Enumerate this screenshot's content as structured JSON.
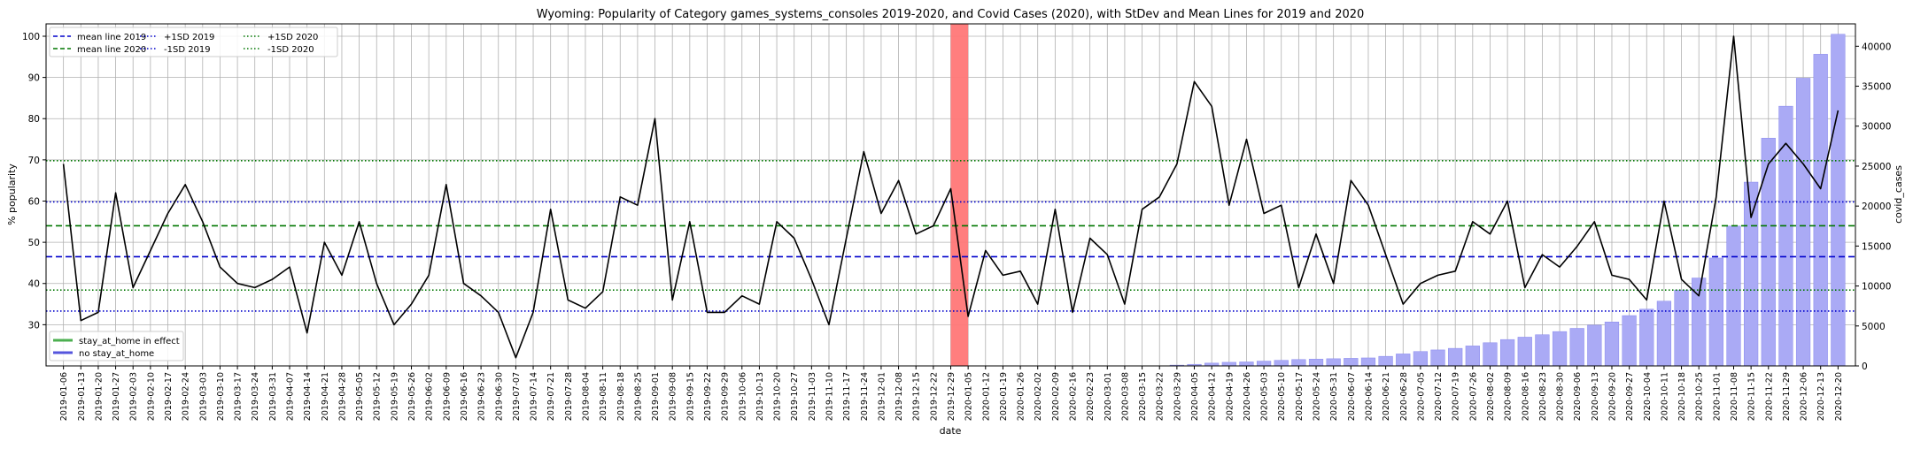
{
  "chart_data": {
    "type": "line+bar",
    "title": "Wyoming: Popularity of Category games_systems_consoles 2019-2020, and Covid Cases (2020), with StDev and Mean Lines for 2019 and 2020",
    "xlabel": "date",
    "ylabel_left": "% popularity",
    "ylabel_right": "covid_cases",
    "ylim_left": [
      20,
      103
    ],
    "ylim_right": [
      0,
      42800
    ],
    "yticks_left": [
      30,
      40,
      50,
      60,
      70,
      80,
      90,
      100
    ],
    "yticks_right": [
      0,
      5000,
      10000,
      15000,
      20000,
      25000,
      30000,
      35000,
      40000
    ],
    "grid": true,
    "dates": [
      "2019-01-06",
      "2019-01-13",
      "2019-01-20",
      "2019-01-27",
      "2019-02-03",
      "2019-02-10",
      "2019-02-17",
      "2019-02-24",
      "2019-03-03",
      "2019-03-10",
      "2019-03-17",
      "2019-03-24",
      "2019-03-31",
      "2019-04-07",
      "2019-04-14",
      "2019-04-21",
      "2019-04-28",
      "2019-05-05",
      "2019-05-12",
      "2019-05-19",
      "2019-05-26",
      "2019-06-02",
      "2019-06-09",
      "2019-06-16",
      "2019-06-23",
      "2019-06-30",
      "2019-07-07",
      "2019-07-14",
      "2019-07-21",
      "2019-07-28",
      "2019-08-04",
      "2019-08-11",
      "2019-08-18",
      "2019-08-25",
      "2019-09-01",
      "2019-09-08",
      "2019-09-15",
      "2019-09-22",
      "2019-09-29",
      "2019-10-06",
      "2019-10-13",
      "2019-10-20",
      "2019-10-27",
      "2019-11-03",
      "2019-11-10",
      "2019-11-17",
      "2019-11-24",
      "2019-12-01",
      "2019-12-08",
      "2019-12-15",
      "2019-12-22",
      "2019-12-29",
      "2020-01-05",
      "2020-01-12",
      "2020-01-19",
      "2020-01-26",
      "2020-02-02",
      "2020-02-09",
      "2020-02-16",
      "2020-02-23",
      "2020-03-01",
      "2020-03-08",
      "2020-03-15",
      "2020-03-22",
      "2020-03-29",
      "2020-04-05",
      "2020-04-12",
      "2020-04-19",
      "2020-04-26",
      "2020-05-03",
      "2020-05-10",
      "2020-05-17",
      "2020-05-24",
      "2020-05-31",
      "2020-06-07",
      "2020-06-14",
      "2020-06-21",
      "2020-06-28",
      "2020-07-05",
      "2020-07-12",
      "2020-07-19",
      "2020-07-26",
      "2020-08-02",
      "2020-08-09",
      "2020-08-16",
      "2020-08-23",
      "2020-08-30",
      "2020-09-06",
      "2020-09-13",
      "2020-09-20",
      "2020-09-27",
      "2020-10-04",
      "2020-10-11",
      "2020-10-18",
      "2020-10-25",
      "2020-11-01",
      "2020-11-08",
      "2020-11-15",
      "2020-11-22",
      "2020-11-29",
      "2020-12-06",
      "2020-12-13",
      "2020-12-20"
    ],
    "popularity": [
      69,
      31,
      33,
      62,
      39,
      48,
      57,
      64,
      55,
      44,
      40,
      39,
      41,
      44,
      28,
      50,
      42,
      55,
      40,
      30,
      35,
      42,
      64,
      40,
      37,
      33,
      22,
      33,
      58,
      36,
      34,
      38,
      61,
      59,
      80,
      36,
      55,
      33,
      33,
      37,
      35,
      55,
      51,
      41,
      30,
      51,
      72,
      57,
      65,
      52,
      54,
      63,
      32,
      48,
      42,
      43,
      35,
      58,
      33,
      51,
      47,
      35,
      58,
      61,
      69,
      89,
      83,
      59,
      75,
      57,
      59,
      39,
      52,
      40,
      65,
      59,
      47,
      35,
      40,
      42,
      43,
      55,
      52,
      60,
      39,
      47,
      44,
      49,
      55,
      42,
      41,
      36,
      60,
      41,
      37,
      61,
      100,
      56,
      69,
      74,
      69,
      63,
      82
    ],
    "covid_dates": [
      "2020-03-29",
      "2020-04-05",
      "2020-04-12",
      "2020-04-19",
      "2020-04-26",
      "2020-05-03",
      "2020-05-10",
      "2020-05-17",
      "2020-05-24",
      "2020-05-31",
      "2020-06-07",
      "2020-06-14",
      "2020-06-21",
      "2020-06-28",
      "2020-07-05",
      "2020-07-12",
      "2020-07-19",
      "2020-07-26",
      "2020-08-02",
      "2020-08-09",
      "2020-08-16",
      "2020-08-23",
      "2020-08-30",
      "2020-09-06",
      "2020-09-13",
      "2020-09-20",
      "2020-09-27",
      "2020-10-04",
      "2020-10-11",
      "2020-10-18",
      "2020-10-25",
      "2020-11-01",
      "2020-11-08",
      "2020-11-15",
      "2020-11-22",
      "2020-11-29",
      "2020-12-06",
      "2020-12-13",
      "2020-12-20"
    ],
    "covid_cases": [
      100,
      200,
      350,
      450,
      500,
      600,
      700,
      800,
      850,
      900,
      950,
      1000,
      1200,
      1500,
      1800,
      2000,
      2200,
      2500,
      2900,
      3300,
      3600,
      3900,
      4300,
      4700,
      5100,
      5500,
      6300,
      7100,
      8100,
      9500,
      11000,
      13500,
      17500,
      23000,
      28500,
      32500,
      36000,
      39000,
      41500
    ],
    "stats": {
      "mean_2019": 46.5,
      "plus_sd_2019": 59.8,
      "minus_sd_2019": 33.3,
      "mean_2020": 54.0,
      "plus_sd_2020": 69.8,
      "minus_sd_2020": 38.4
    },
    "highlight_span": {
      "from": "2019-12-29",
      "to": "2020-01-05"
    },
    "legend_top": [
      {
        "label": "mean line 2019",
        "color": "#0000cc",
        "style": "dashed"
      },
      {
        "label": "mean line 2020",
        "color": "#007700",
        "style": "dashed"
      },
      {
        "label": "+1SD 2019",
        "color": "#0000cc",
        "style": "dotted"
      },
      {
        "label": "-1SD 2019",
        "color": "#0000cc",
        "style": "dotted"
      },
      {
        "label": "+1SD 2020",
        "color": "#007700",
        "style": "dotted"
      },
      {
        "label": "-1SD 2020",
        "color": "#007700",
        "style": "dotted"
      }
    ],
    "legend_bottom": [
      {
        "label": "stay_at_home in effect",
        "color": "#4caf50"
      },
      {
        "label": "no stay_at_home",
        "color": "#5555dd"
      }
    ],
    "colors": {
      "line": "#000000",
      "bars": "#aaaaf5",
      "bars_edge": "#8888ee",
      "highlight": "#ff7777",
      "grid": "#b0b0b0"
    }
  }
}
